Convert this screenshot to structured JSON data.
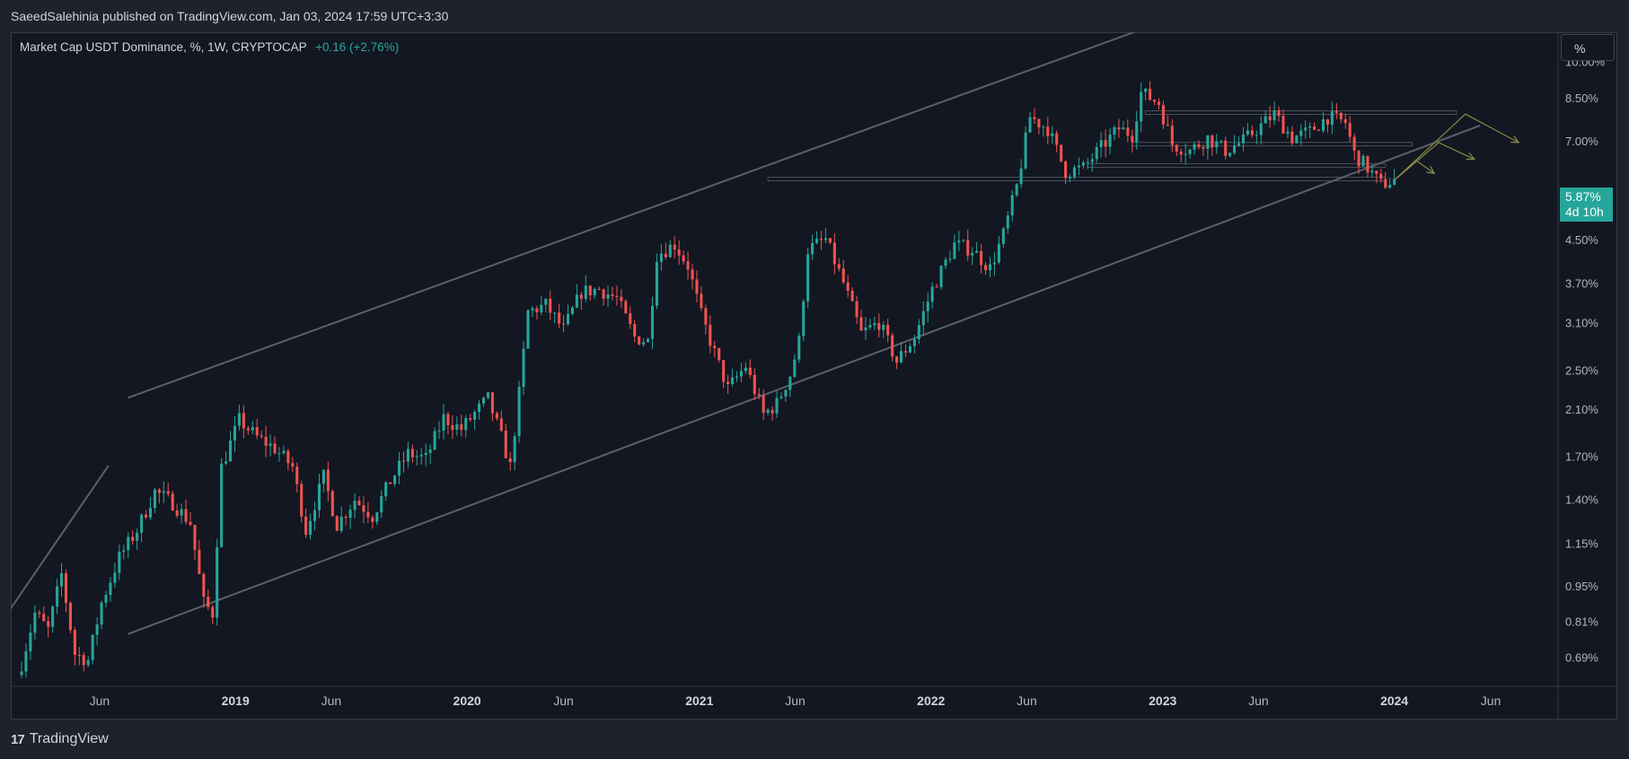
{
  "header": {
    "published": "SaeedSalehinia published on TradingView.com, Jan 03, 2024 17:59 UTC+3:30"
  },
  "legend": {
    "symbol": "Market Cap USDT Dominance, %, 1W, CRYPTOCAP",
    "change": "+0.16 (+2.76%)"
  },
  "scale_button": "%",
  "last_price": {
    "value": "5.87%",
    "countdown": "4d 10h"
  },
  "brand": {
    "logo": "17",
    "name": "TradingView"
  },
  "colors": {
    "up": "#26a69a",
    "down": "#ef5350",
    "channel": "#5d606b",
    "arrows": "#8a8a46",
    "bg": "#131722"
  },
  "chart_data": {
    "type": "candlestick",
    "scale": "log",
    "y_unit": "%",
    "y_ticks": [
      {
        "value": 10.0,
        "label": "10.00%"
      },
      {
        "value": 8.5,
        "label": "8.50%"
      },
      {
        "value": 7.0,
        "label": "7.00%"
      },
      {
        "value": 4.5,
        "label": "4.50%"
      },
      {
        "value": 3.7,
        "label": "3.70%"
      },
      {
        "value": 3.1,
        "label": "3.10%"
      },
      {
        "value": 2.5,
        "label": "2.50%"
      },
      {
        "value": 2.1,
        "label": "2.10%"
      },
      {
        "value": 1.7,
        "label": "1.70%"
      },
      {
        "value": 1.4,
        "label": "1.40%"
      },
      {
        "value": 1.15,
        "label": "1.15%"
      },
      {
        "value": 0.95,
        "label": "0.95%"
      },
      {
        "value": 0.81,
        "label": "0.81%"
      },
      {
        "value": 0.69,
        "label": "0.69%"
      }
    ],
    "x_ticks": [
      {
        "date": "2018-06-01",
        "label": "Jun",
        "bold": false
      },
      {
        "date": "2019-01-01",
        "label": "2019",
        "bold": true
      },
      {
        "date": "2019-06-01",
        "label": "Jun",
        "bold": false
      },
      {
        "date": "2020-01-01",
        "label": "2020",
        "bold": true
      },
      {
        "date": "2020-06-01",
        "label": "Jun",
        "bold": false
      },
      {
        "date": "2021-01-01",
        "label": "2021",
        "bold": true
      },
      {
        "date": "2021-06-01",
        "label": "Jun",
        "bold": false
      },
      {
        "date": "2022-01-01",
        "label": "2022",
        "bold": true
      },
      {
        "date": "2022-06-01",
        "label": "Jun",
        "bold": false
      },
      {
        "date": "2023-01-01",
        "label": "2023",
        "bold": true
      },
      {
        "date": "2023-06-01",
        "label": "Jun",
        "bold": false
      },
      {
        "date": "2024-01-01",
        "label": "2024",
        "bold": true
      },
      {
        "date": "2024-06-01",
        "label": "Jun",
        "bold": false
      }
    ],
    "close_path": [
      [
        "2018-01-29",
        0.67
      ],
      [
        "2018-02-19",
        0.84
      ],
      [
        "2018-03-12",
        0.78
      ],
      [
        "2018-04-02",
        1.0
      ],
      [
        "2018-04-23",
        0.7
      ],
      [
        "2018-05-14",
        0.68
      ],
      [
        "2018-06-04",
        0.88
      ],
      [
        "2018-07-02",
        1.08
      ],
      [
        "2018-07-30",
        1.22
      ],
      [
        "2018-08-27",
        1.45
      ],
      [
        "2018-09-24",
        1.38
      ],
      [
        "2018-10-22",
        1.26
      ],
      [
        "2018-11-12",
        0.88
      ],
      [
        "2018-11-26",
        0.84
      ],
      [
        "2018-12-10",
        1.62
      ],
      [
        "2019-01-07",
        2.0
      ],
      [
        "2019-02-04",
        1.85
      ],
      [
        "2019-03-04",
        1.76
      ],
      [
        "2019-04-01",
        1.62
      ],
      [
        "2019-04-22",
        1.22
      ],
      [
        "2019-05-20",
        1.55
      ],
      [
        "2019-06-10",
        1.25
      ],
      [
        "2019-07-08",
        1.4
      ],
      [
        "2019-08-05",
        1.3
      ],
      [
        "2019-09-02",
        1.52
      ],
      [
        "2019-09-30",
        1.72
      ],
      [
        "2019-10-28",
        1.68
      ],
      [
        "2019-11-25",
        2.02
      ],
      [
        "2019-12-23",
        1.92
      ],
      [
        "2020-01-13",
        2.06
      ],
      [
        "2020-02-03",
        2.2
      ],
      [
        "2020-02-24",
        1.85
      ],
      [
        "2020-03-09",
        1.62
      ],
      [
        "2020-03-23",
        2.25
      ],
      [
        "2020-04-06",
        3.25
      ],
      [
        "2020-05-04",
        3.35
      ],
      [
        "2020-06-01",
        3.0
      ],
      [
        "2020-06-29",
        3.55
      ],
      [
        "2020-07-27",
        3.6
      ],
      [
        "2020-08-24",
        3.45
      ],
      [
        "2020-09-21",
        2.9
      ],
      [
        "2020-10-12",
        2.85
      ],
      [
        "2020-10-26",
        4.2
      ],
      [
        "2020-11-23",
        4.4
      ],
      [
        "2020-12-14",
        4.0
      ],
      [
        "2021-01-04",
        3.2
      ],
      [
        "2021-01-25",
        2.7
      ],
      [
        "2021-02-15",
        2.3
      ],
      [
        "2021-03-15",
        2.55
      ],
      [
        "2021-04-12",
        2.05
      ],
      [
        "2021-05-03",
        2.15
      ],
      [
        "2021-05-24",
        2.45
      ],
      [
        "2021-06-07",
        2.85
      ],
      [
        "2021-06-21",
        4.3
      ],
      [
        "2021-07-19",
        4.5
      ],
      [
        "2021-08-16",
        3.7
      ],
      [
        "2021-09-13",
        2.95
      ],
      [
        "2021-10-11",
        3.1
      ],
      [
        "2021-11-08",
        2.6
      ],
      [
        "2021-12-06",
        2.9
      ],
      [
        "2022-01-03",
        3.6
      ],
      [
        "2022-02-07",
        4.4
      ],
      [
        "2022-03-07",
        4.3
      ],
      [
        "2022-04-04",
        3.95
      ],
      [
        "2022-04-25",
        4.6
      ],
      [
        "2022-05-16",
        5.7
      ],
      [
        "2022-06-06",
        7.8
      ],
      [
        "2022-07-04",
        7.4
      ],
      [
        "2022-08-01",
        6.1
      ],
      [
        "2022-08-29",
        6.2
      ],
      [
        "2022-09-26",
        6.8
      ],
      [
        "2022-10-24",
        7.4
      ],
      [
        "2022-11-14",
        7.2
      ],
      [
        "2022-11-28",
        8.7
      ],
      [
        "2022-12-26",
        8.3
      ],
      [
        "2023-01-16",
        6.9
      ],
      [
        "2023-02-13",
        6.7
      ],
      [
        "2023-03-13",
        7.1
      ],
      [
        "2023-04-10",
        6.7
      ],
      [
        "2023-05-08",
        7.0
      ],
      [
        "2023-06-05",
        7.5
      ],
      [
        "2023-06-26",
        7.9
      ],
      [
        "2023-07-24",
        7.1
      ],
      [
        "2023-08-21",
        7.3
      ],
      [
        "2023-09-18",
        7.8
      ],
      [
        "2023-10-16",
        7.6
      ],
      [
        "2023-10-30",
        6.6
      ],
      [
        "2023-11-20",
        6.2
      ],
      [
        "2023-12-11",
        5.75
      ],
      [
        "2024-01-01",
        5.87
      ]
    ],
    "channel": {
      "upper": [
        [
          "2018-07-16",
          2.21
        ],
        [
          "2023-02-13",
          12.5
        ]
      ],
      "lower": [
        [
          "2018-07-16",
          0.765
        ],
        [
          "2024-05-15",
          7.5
        ]
      ],
      "extra": [
        [
          "2018-01-01",
          0.82
        ],
        [
          "2018-06-15",
          1.63
        ]
      ]
    },
    "levels": [
      {
        "value": 5.9,
        "from": "2021-04-19",
        "to": "2023-12-18"
      },
      {
        "value": 6.27,
        "from": "2022-09-05",
        "to": "2023-12-18"
      },
      {
        "value": 6.9,
        "from": "2022-11-14",
        "to": "2024-01-29"
      },
      {
        "value": 7.95,
        "from": "2022-12-05",
        "to": "2024-04-08"
      }
    ],
    "projections": [
      [
        [
          "2024-01-01",
          5.87
        ],
        [
          "2024-04-22",
          7.9
        ],
        [
          "2024-07-15",
          6.95
        ]
      ],
      [
        [
          "2024-01-01",
          5.87
        ],
        [
          "2024-03-11",
          6.95
        ],
        [
          "2024-05-06",
          6.45
        ]
      ],
      [
        [
          "2024-01-01",
          5.87
        ],
        [
          "2024-02-05",
          6.4
        ],
        [
          "2024-03-04",
          6.05
        ]
      ]
    ],
    "x_range": [
      "2018-01-12",
      "2024-09-15"
    ],
    "y_range": [
      0.605,
      11.4
    ],
    "grid": false
  }
}
